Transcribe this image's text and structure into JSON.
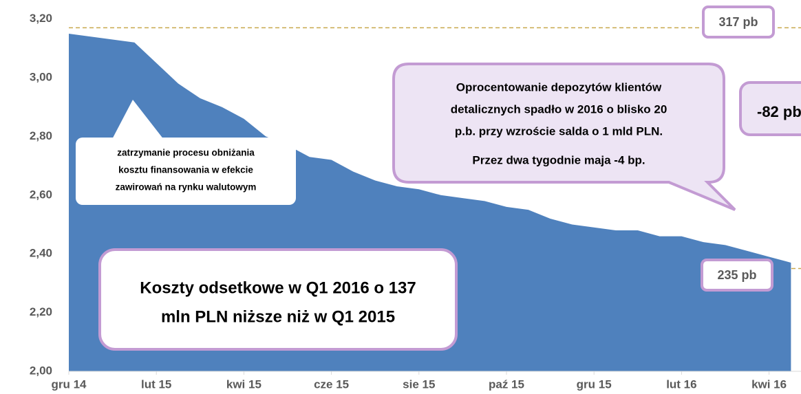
{
  "chart_data": {
    "type": "area",
    "categories": [
      "gru 14",
      null,
      null,
      null,
      "lut 15",
      null,
      null,
      null,
      "kwi 15",
      null,
      null,
      null,
      "cze 15",
      null,
      null,
      null,
      "sie 15",
      null,
      null,
      null,
      "paź 15",
      null,
      null,
      null,
      "gru 15",
      null,
      null,
      null,
      "lut 16",
      null,
      null,
      null,
      "kwi 16",
      null
    ],
    "values": [
      3.15,
      3.14,
      3.13,
      3.12,
      3.05,
      2.98,
      2.93,
      2.9,
      2.86,
      2.8,
      2.77,
      2.73,
      2.72,
      2.68,
      2.65,
      2.63,
      2.62,
      2.6,
      2.59,
      2.58,
      2.56,
      2.55,
      2.52,
      2.5,
      2.49,
      2.48,
      2.48,
      2.46,
      2.46,
      2.44,
      2.43,
      2.41,
      2.39,
      2.37
    ],
    "color": "#4f81bd",
    "ylim": [
      2.0,
      3.2
    ],
    "yticks": [
      {
        "value": 2.0,
        "label": "2,00"
      },
      {
        "value": 2.2,
        "label": "2,20"
      },
      {
        "value": 2.4,
        "label": "2,40"
      },
      {
        "value": 2.6,
        "label": "2,60"
      },
      {
        "value": 2.8,
        "label": "2,80"
      },
      {
        "value": 3.0,
        "label": "3,00"
      },
      {
        "value": 3.2,
        "label": "3,20"
      }
    ],
    "grid": false,
    "reference_lines": [
      {
        "value": 3.17,
        "label": "317 pb"
      },
      {
        "value": 2.35,
        "label": "235 pb"
      }
    ],
    "annotations": [
      {
        "lines": [
          "zatrzymanie procesu obniżania",
          "kosztu finansowania w efekcie",
          "zawirowań na rynku walutowym"
        ]
      },
      {
        "lines": [
          "Koszty odsetkowe w Q1 2016 o 137",
          "mln PLN niższe niż w Q1 2015"
        ]
      },
      {
        "lines": [
          "Oprocentowanie depozytów klientów",
          "detalicznych spadło w 2016 o blisko 20",
          "p.b. przy wzroście salda o 1 mld PLN.",
          "Przez dwa tygodnie maja -4 bp."
        ]
      },
      {
        "lines": [
          "-82 pb"
        ]
      }
    ]
  }
}
